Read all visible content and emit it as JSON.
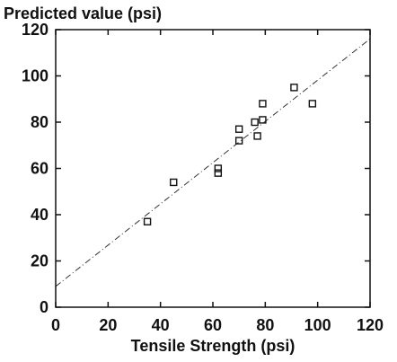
{
  "chart_data": {
    "type": "scatter",
    "title": "",
    "xlabel": "Tensile Strength (psi)",
    "ylabel": "Predicted value (psi)",
    "xlim": [
      0,
      120
    ],
    "ylim": [
      0,
      120
    ],
    "xticks": [
      "0",
      "20",
      "40",
      "60",
      "80",
      "100",
      "120"
    ],
    "yticks": [
      "0",
      "20",
      "40",
      "60",
      "80",
      "100",
      "120"
    ],
    "grid": false,
    "marker": "open-square",
    "series": [
      {
        "points": [
          {
            "x": 35,
            "y": 37
          },
          {
            "x": 45,
            "y": 54
          },
          {
            "x": 62,
            "y": 60
          },
          {
            "x": 62,
            "y": 58
          },
          {
            "x": 70,
            "y": 77
          },
          {
            "x": 70,
            "y": 72
          },
          {
            "x": 76,
            "y": 80
          },
          {
            "x": 77,
            "y": 74
          },
          {
            "x": 79,
            "y": 81
          },
          {
            "x": 79,
            "y": 88
          },
          {
            "x": 91,
            "y": 95
          },
          {
            "x": 98,
            "y": 88
          }
        ]
      }
    ],
    "fit_line": {
      "style": "dash-dot",
      "from": {
        "x": 0,
        "y": 9
      },
      "to": {
        "x": 120,
        "y": 116
      }
    }
  }
}
